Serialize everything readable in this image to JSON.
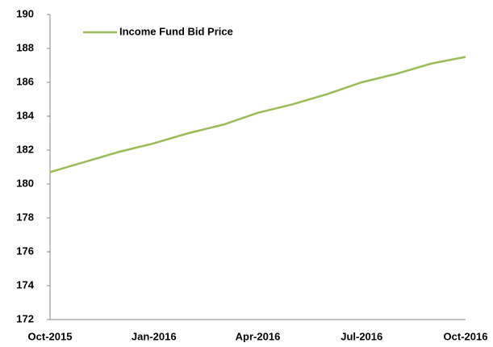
{
  "chart_data": {
    "type": "line",
    "categories": [
      "Oct-2015",
      null,
      null,
      "Jan-2016",
      null,
      null,
      "Apr-2016",
      null,
      null,
      "Jul-2016",
      null,
      null,
      "Oct-2016"
    ],
    "series": [
      {
        "name": "Income Fund Bid Price",
        "color": "#9bbb59",
        "values": [
          180.7,
          181.3,
          181.9,
          182.4,
          183.0,
          183.5,
          184.2,
          184.7,
          185.3,
          186.0,
          186.5,
          187.1,
          187.5
        ]
      }
    ],
    "ylim": [
      172,
      190
    ],
    "yticks": [
      172,
      174,
      176,
      178,
      180,
      182,
      184,
      186,
      188,
      190
    ],
    "grid": false,
    "legend": "top-left"
  }
}
